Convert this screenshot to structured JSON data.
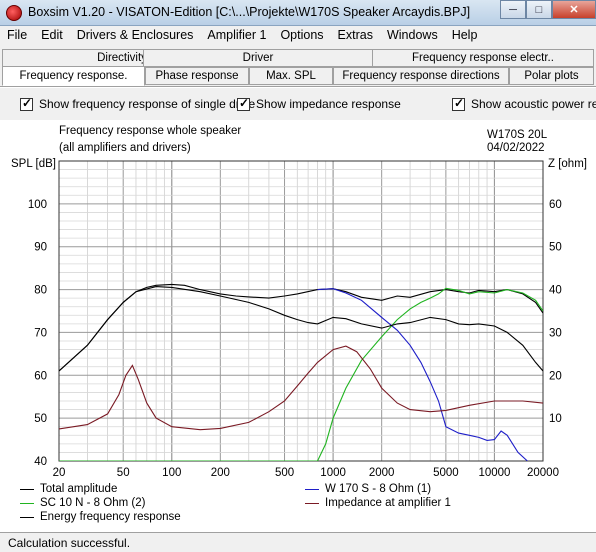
{
  "window": {
    "title": "Boxsim V1.20 - VISATON-Edition [C:\\...\\Projekte\\W170S Speaker Arcaydis.BPJ]",
    "icon": "speaker-app-icon",
    "buttons": [
      "minimize",
      "maximize",
      "close"
    ]
  },
  "menu": [
    "File",
    "Edit",
    "Drivers & Enclosures",
    "Amplifier 1",
    "Options",
    "Extras",
    "Windows",
    "Help"
  ],
  "tabs_row1": [
    "Directivity",
    "Driver",
    "Frequency response electr.."
  ],
  "tabs_row2": [
    "Frequency response.",
    "Phase response",
    "Max. SPL",
    "Frequency response directions",
    "Polar plots"
  ],
  "active_tab": "Frequency response.",
  "options": [
    {
      "label": "Show frequency response of single drive",
      "checked": true
    },
    {
      "label": "Show impedance response",
      "checked": true
    },
    {
      "label": "Show acoustic power resp",
      "checked": true
    }
  ],
  "chart_header": {
    "title_line1": "Frequency response whole speaker",
    "title_line2": "(all amplifiers and drivers)",
    "info_line1": "W170S 20L",
    "info_line2": "04/02/2022"
  },
  "chart_data": {
    "type": "line",
    "x_scale": "log",
    "xlim": [
      20,
      20000
    ],
    "x_ticks": [
      "20",
      "50",
      "100",
      "200",
      "500",
      "1000",
      "2000",
      "5000",
      "10000",
      "20000"
    ],
    "ylabel_left": "SPL [dB]",
    "ylim_left": [
      40,
      110
    ],
    "y_ticks_left": [
      "40",
      "50",
      "60",
      "70",
      "80",
      "90",
      "100"
    ],
    "ylabel_right": "Z [ohm]",
    "ylim_right": [
      0,
      70
    ],
    "y_ticks_right": [
      "10",
      "20",
      "30",
      "40",
      "50",
      "60"
    ],
    "grid": true,
    "series": [
      {
        "name": "Total amplitude",
        "color": "#000000",
        "axis": "left",
        "points": [
          [
            20,
            61
          ],
          [
            30,
            67
          ],
          [
            40,
            73
          ],
          [
            50,
            77
          ],
          [
            60,
            79.5
          ],
          [
            70,
            80.5
          ],
          [
            80,
            81
          ],
          [
            100,
            81.2
          ],
          [
            120,
            81
          ],
          [
            150,
            80
          ],
          [
            200,
            79
          ],
          [
            250,
            78.5
          ],
          [
            300,
            78.3
          ],
          [
            400,
            78
          ],
          [
            500,
            78.5
          ],
          [
            600,
            79
          ],
          [
            800,
            80
          ],
          [
            1000,
            80.2
          ],
          [
            1200,
            79.5
          ],
          [
            1500,
            78.2
          ],
          [
            2000,
            77.5
          ],
          [
            2500,
            78.5
          ],
          [
            3000,
            78.2
          ],
          [
            4000,
            79.5
          ],
          [
            5000,
            80
          ],
          [
            6000,
            79.5
          ],
          [
            7000,
            79.2
          ],
          [
            8000,
            79.8
          ],
          [
            10000,
            79.5
          ],
          [
            12000,
            80
          ],
          [
            15000,
            79
          ],
          [
            18000,
            77
          ],
          [
            20000,
            74.5
          ]
        ]
      },
      {
        "name": "W 170 S - 8 Ohm (1)",
        "color": "#1e1ec8",
        "axis": "left",
        "points": [
          [
            800,
            80
          ],
          [
            1000,
            80.2
          ],
          [
            1200,
            79.2
          ],
          [
            1500,
            77.5
          ],
          [
            2000,
            73.5
          ],
          [
            2500,
            70.5
          ],
          [
            3000,
            67
          ],
          [
            3500,
            63
          ],
          [
            4000,
            58.5
          ],
          [
            4500,
            54
          ],
          [
            5000,
            48
          ],
          [
            6000,
            46.5
          ],
          [
            7000,
            46
          ],
          [
            8000,
            45.5
          ],
          [
            9000,
            44.8
          ],
          [
            10000,
            45
          ],
          [
            11000,
            47
          ],
          [
            12000,
            46
          ],
          [
            14000,
            42
          ],
          [
            16000,
            40
          ]
        ]
      },
      {
        "name": "SC 10 N - 8 Ohm (2)",
        "color": "#20b420",
        "axis": "left",
        "points": [
          [
            20,
            40
          ],
          [
            800,
            40
          ],
          [
            900,
            44
          ],
          [
            1000,
            50
          ],
          [
            1200,
            57
          ],
          [
            1500,
            63.5
          ],
          [
            2000,
            69
          ],
          [
            2500,
            73
          ],
          [
            3000,
            75.5
          ],
          [
            3500,
            77
          ],
          [
            4000,
            78
          ],
          [
            4500,
            79
          ],
          [
            5000,
            80.3
          ],
          [
            6000,
            79.8
          ],
          [
            7000,
            79
          ],
          [
            8000,
            79.5
          ],
          [
            10000,
            79.2
          ],
          [
            12000,
            80
          ],
          [
            15000,
            79.2
          ],
          [
            18000,
            77.5
          ],
          [
            20000,
            75
          ]
        ]
      },
      {
        "name": "Impedance at amplifier 1",
        "color": "#7a1a24",
        "axis": "right",
        "points": [
          [
            20,
            7.5
          ],
          [
            30,
            8.5
          ],
          [
            40,
            11
          ],
          [
            47,
            15.5
          ],
          [
            52,
            20
          ],
          [
            57,
            22.3
          ],
          [
            62,
            19
          ],
          [
            70,
            13.5
          ],
          [
            80,
            10
          ],
          [
            100,
            8
          ],
          [
            150,
            7.3
          ],
          [
            200,
            7.6
          ],
          [
            300,
            9
          ],
          [
            400,
            11.5
          ],
          [
            500,
            14
          ],
          [
            600,
            17.5
          ],
          [
            700,
            20.5
          ],
          [
            800,
            23
          ],
          [
            1000,
            26
          ],
          [
            1200,
            26.8
          ],
          [
            1400,
            25.5
          ],
          [
            1700,
            21.5
          ],
          [
            2000,
            17
          ],
          [
            2500,
            13.5
          ],
          [
            3000,
            12
          ],
          [
            4000,
            11.5
          ],
          [
            5000,
            11.8
          ],
          [
            7000,
            13
          ],
          [
            10000,
            14
          ],
          [
            15000,
            14
          ],
          [
            20000,
            13.5
          ]
        ]
      },
      {
        "name": "Energy frequency response",
        "color": "#000000",
        "axis": "left",
        "points": [
          [
            20,
            61
          ],
          [
            30,
            67
          ],
          [
            40,
            73
          ],
          [
            50,
            77
          ],
          [
            60,
            79.5
          ],
          [
            80,
            80.7
          ],
          [
            100,
            80.5
          ],
          [
            150,
            79.5
          ],
          [
            200,
            78.5
          ],
          [
            300,
            77
          ],
          [
            400,
            75.5
          ],
          [
            500,
            74
          ],
          [
            600,
            73
          ],
          [
            700,
            72.3
          ],
          [
            800,
            72
          ],
          [
            1000,
            73.5
          ],
          [
            1200,
            73.2
          ],
          [
            1500,
            72
          ],
          [
            2000,
            71
          ],
          [
            2500,
            72
          ],
          [
            3000,
            72.3
          ],
          [
            4000,
            73.5
          ],
          [
            5000,
            73
          ],
          [
            6000,
            72
          ],
          [
            7000,
            71.8
          ],
          [
            8000,
            72
          ],
          [
            10000,
            71.5
          ],
          [
            12000,
            70
          ],
          [
            15000,
            67
          ],
          [
            18000,
            63
          ],
          [
            20000,
            61
          ]
        ]
      }
    ]
  },
  "legend": [
    {
      "label": "Total amplitude",
      "color": "#000000"
    },
    {
      "label": "W 170 S - 8 Ohm (1)",
      "color": "#1e1ec8"
    },
    {
      "label": "SC 10 N - 8 Ohm (2)",
      "color": "#20b420"
    },
    {
      "label": "Impedance at amplifier 1",
      "color": "#7a1a24"
    },
    {
      "label": "Energy frequency response",
      "color": "#000000"
    }
  ],
  "status": "Calculation successful."
}
